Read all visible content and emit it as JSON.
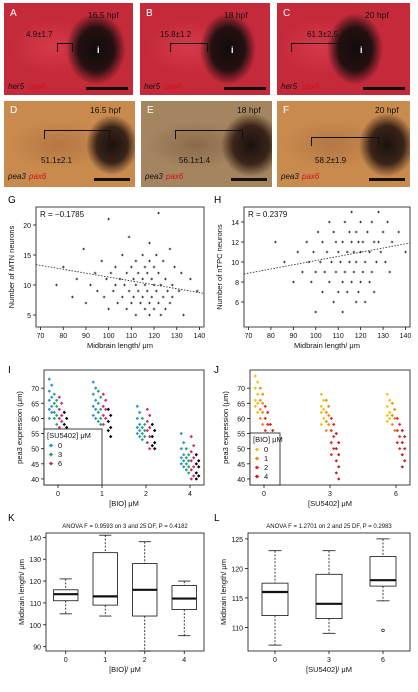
{
  "panels": {
    "A": {
      "label": "A",
      "stage": "16.5 hpf",
      "measure": "4.9±1.7",
      "marker": "i",
      "gene1": "her5",
      "gene2": "pax6"
    },
    "B": {
      "label": "B",
      "stage": "18 hpf",
      "measure": "15.8±1.2",
      "marker": "i",
      "gene1": "her5",
      "gene2": "pax6"
    },
    "C": {
      "label": "C",
      "stage": "20 hpf",
      "measure": "61.3±2.5",
      "marker": "i",
      "gene1": "her5",
      "gene2": "pax6"
    },
    "D": {
      "label": "D",
      "stage": "16.5 hpf",
      "measure": "51.1±2.1",
      "gene1": "pea3",
      "gene2": "pax6"
    },
    "E": {
      "label": "E",
      "stage": "18 hpf",
      "measure": "56.1±1.4",
      "gene1": "pea3",
      "gene2": "pax6"
    },
    "F": {
      "label": "F",
      "stage": "20 hpf",
      "measure": "58.2±1.9",
      "gene1": "pea3",
      "gene2": "pax6"
    }
  },
  "colors": {
    "her5_bg": "#c52a3a",
    "pea3_bg": "#c98a4e",
    "stain_dark": "#1a1210",
    "gene_red": "#d2111a",
    "bio_0": "#2f8fd8",
    "bio_1": "#23a86b",
    "bio_2": "#cf6b7e",
    "bio_3": "#d3277a",
    "su_0": "#f2c312",
    "su_1": "#ef8a21",
    "su_2": "#d9302a",
    "su_3": "#b4262a"
  },
  "chart_data": [
    {
      "panel": "G",
      "type": "scatter",
      "annotation": "R = −0.1785",
      "xlabel": "Midbrain length/ μm",
      "ylabel": "Number of MTN neurons",
      "xlim": [
        68,
        142
      ],
      "ylim": [
        3,
        23
      ],
      "xticks": [
        70,
        80,
        90,
        100,
        110,
        120,
        130,
        140
      ],
      "yticks": [
        5,
        10,
        15,
        20
      ],
      "trend": {
        "x": [
          68,
          142
        ],
        "y": [
          13.4,
          8.6
        ]
      },
      "points": [
        [
          100,
          21
        ],
        [
          122,
          22
        ],
        [
          109,
          18
        ],
        [
          118,
          17
        ],
        [
          89,
          16
        ],
        [
          127,
          16
        ],
        [
          106,
          15
        ],
        [
          115,
          15
        ],
        [
          121,
          15
        ],
        [
          97,
          14
        ],
        [
          112,
          14
        ],
        [
          118,
          14
        ],
        [
          124,
          14
        ],
        [
          80,
          13
        ],
        [
          103,
          13
        ],
        [
          110,
          13
        ],
        [
          116,
          13
        ],
        [
          120,
          13
        ],
        [
          129,
          13
        ],
        [
          94,
          12
        ],
        [
          101,
          12
        ],
        [
          108,
          12
        ],
        [
          113,
          12
        ],
        [
          117,
          12
        ],
        [
          122,
          12
        ],
        [
          132,
          12
        ],
        [
          86,
          11
        ],
        [
          99,
          11
        ],
        [
          105,
          11
        ],
        [
          111,
          11
        ],
        [
          115,
          11
        ],
        [
          119,
          11
        ],
        [
          125,
          11
        ],
        [
          136,
          11
        ],
        [
          77,
          10
        ],
        [
          92,
          10
        ],
        [
          103,
          10
        ],
        [
          107,
          10
        ],
        [
          112,
          10
        ],
        [
          116,
          10
        ],
        [
          120,
          10
        ],
        [
          123,
          10
        ],
        [
          128,
          10
        ],
        [
          95,
          9
        ],
        [
          102,
          9
        ],
        [
          109,
          9
        ],
        [
          113,
          9
        ],
        [
          117,
          9
        ],
        [
          121,
          9
        ],
        [
          126,
          9
        ],
        [
          131,
          9
        ],
        [
          139,
          9
        ],
        [
          84,
          8
        ],
        [
          98,
          8
        ],
        [
          106,
          8
        ],
        [
          111,
          8
        ],
        [
          115,
          8
        ],
        [
          119,
          8
        ],
        [
          124,
          8
        ],
        [
          104,
          7
        ],
        [
          110,
          7
        ],
        [
          114,
          7
        ],
        [
          118,
          7
        ],
        [
          122,
          7
        ],
        [
          127,
          7
        ],
        [
          100,
          6
        ],
        [
          108,
          6
        ],
        [
          116,
          6
        ],
        [
          120,
          6
        ],
        [
          125,
          6
        ],
        [
          112,
          5
        ],
        [
          118,
          5
        ],
        [
          123,
          5
        ],
        [
          133,
          5
        ],
        [
          90,
          7
        ],
        [
          128,
          8
        ]
      ]
    },
    {
      "panel": "H",
      "type": "scatter",
      "annotation": "R = 0.2379",
      "xlabel": "Midbrain length/ μm",
      "ylabel": "Number of nTPC neurons",
      "xlim": [
        68,
        142
      ],
      "ylim": [
        3.5,
        15.5
      ],
      "xticks": [
        70,
        80,
        90,
        100,
        110,
        120,
        130,
        140
      ],
      "yticks": [
        6,
        8,
        10,
        12,
        14
      ],
      "trend": {
        "x": [
          68,
          142
        ],
        "y": [
          8.8,
          11.9
        ]
      },
      "points": [
        [
          116,
          15
        ],
        [
          128,
          15
        ],
        [
          106,
          14
        ],
        [
          113,
          14
        ],
        [
          120,
          14
        ],
        [
          125,
          14
        ],
        [
          132,
          14
        ],
        [
          101,
          13
        ],
        [
          108,
          13
        ],
        [
          115,
          13
        ],
        [
          118,
          13
        ],
        [
          123,
          13
        ],
        [
          130,
          13
        ],
        [
          137,
          13
        ],
        [
          82,
          12
        ],
        [
          96,
          12
        ],
        [
          103,
          12
        ],
        [
          109,
          12
        ],
        [
          112,
          12
        ],
        [
          116,
          12
        ],
        [
          119,
          12
        ],
        [
          121,
          12
        ],
        [
          126,
          12
        ],
        [
          128,
          12
        ],
        [
          134,
          12
        ],
        [
          92,
          11
        ],
        [
          99,
          11
        ],
        [
          105,
          11
        ],
        [
          110,
          11
        ],
        [
          114,
          11
        ],
        [
          117,
          11
        ],
        [
          120,
          11
        ],
        [
          124,
          11
        ],
        [
          129,
          11
        ],
        [
          140,
          11
        ],
        [
          86,
          10
        ],
        [
          97,
          10
        ],
        [
          102,
          10
        ],
        [
          107,
          10
        ],
        [
          111,
          10
        ],
        [
          115,
          10
        ],
        [
          118,
          10
        ],
        [
          122,
          10
        ],
        [
          127,
          10
        ],
        [
          131,
          10
        ],
        [
          94,
          9
        ],
        [
          100,
          9
        ],
        [
          104,
          9
        ],
        [
          109,
          9
        ],
        [
          113,
          9
        ],
        [
          117,
          9
        ],
        [
          121,
          9
        ],
        [
          125,
          9
        ],
        [
          133,
          9
        ],
        [
          90,
          8
        ],
        [
          98,
          8
        ],
        [
          106,
          8
        ],
        [
          112,
          8
        ],
        [
          116,
          8
        ],
        [
          120,
          8
        ],
        [
          124,
          8
        ],
        [
          103,
          7
        ],
        [
          110,
          7
        ],
        [
          114,
          7
        ],
        [
          119,
          7
        ],
        [
          126,
          7
        ],
        [
          108,
          6
        ],
        [
          118,
          6
        ],
        [
          122,
          6
        ],
        [
          112,
          5
        ],
        [
          100,
          5
        ]
      ]
    },
    {
      "panel": "I",
      "type": "scatter",
      "ylabel": "pea3 expression (μm)",
      "xlabel": "[BIO] μM",
      "categories": [
        "0",
        "1",
        "2",
        "4"
      ],
      "ylim": [
        38,
        76
      ],
      "yticks": [
        40,
        45,
        50,
        55,
        60,
        65,
        70
      ],
      "legend": {
        "title": "[SU5402] μM",
        "labels": [
          "0",
          "3",
          "6"
        ]
      },
      "series": [
        {
          "values": [
            [
              73,
              71,
              69,
              67,
              66,
              64,
              63,
              62,
              60
            ],
            [
              72,
              70,
              68,
              66,
              64,
              63,
              61,
              60
            ],
            [
              64,
              62,
              60,
              58,
              57,
              56,
              55,
              54
            ],
            [
              55,
              52,
              50,
              48,
              47,
              46,
              45,
              44
            ]
          ]
        },
        {
          "values": [
            [
              68,
              66,
              65,
              64,
              62,
              61,
              60,
              58
            ],
            [
              69,
              67,
              65,
              63,
              62,
              60,
              59,
              58
            ],
            [
              60,
              58,
              57,
              56,
              55,
              54,
              53
            ],
            [
              50,
              48,
              47,
              46,
              45,
              44,
              43,
              42
            ]
          ]
        },
        {
          "values": [
            [
              67,
              65,
              63,
              61,
              60,
              59,
              57
            ],
            [
              68,
              66,
              64,
              63,
              61,
              60,
              58
            ],
            [
              63,
              61,
              59,
              57,
              56,
              54,
              52,
              50
            ],
            [
              54,
              51,
              49,
              47,
              46,
              44,
              43,
              41,
              40
            ]
          ]
        },
        {
          "values": [
            [
              62,
              60,
              58,
              57,
              55,
              54
            ],
            [
              63,
              61,
              59,
              57,
              56,
              54
            ],
            [
              58,
              56,
              54,
              52,
              51,
              50
            ],
            [
              48,
              46,
              45,
              44,
              42,
              41,
              40
            ]
          ]
        }
      ]
    },
    {
      "panel": "J",
      "type": "scatter",
      "ylabel": "pea3 expression (μm)",
      "xlabel": "[SU5402] μM",
      "categories": [
        "0",
        "3",
        "6"
      ],
      "ylim": [
        38,
        76
      ],
      "yticks": [
        40,
        45,
        50,
        55,
        60,
        65,
        70
      ],
      "legend": {
        "title": "[BIO] μM",
        "labels": [
          "0",
          "1",
          "2",
          "4"
        ]
      },
      "series": [
        {
          "values": [
            [
              74,
              72,
              70,
              68,
              66,
              65,
              64,
              62
            ],
            [
              68,
              66,
              64,
              63,
              62,
              60,
              58
            ],
            [
              68,
              66,
              64,
              62,
              61,
              60,
              59
            ]
          ]
        },
        {
          "values": [
            [
              70,
              68,
              66,
              65,
              63,
              62,
              60,
              58
            ],
            [
              66,
              64,
              62,
              61,
              59,
              58,
              56
            ],
            [
              65,
              63,
              61,
              60,
              58,
              56
            ]
          ]
        },
        {
          "values": [
            [
              64,
              62,
              60,
              58,
              56,
              55,
              53,
              51
            ],
            [
              60,
              58,
              56,
              54,
              52,
              50,
              48
            ],
            [
              60,
              58,
              56,
              54,
              52,
              50
            ]
          ]
        },
        {
          "values": [
            [
              58,
              56,
              54,
              52,
              50,
              48,
              46,
              44
            ],
            [
              55,
              52,
              50,
              48,
              46,
              44,
              42,
              40
            ],
            [
              56,
              54,
              52,
              50,
              48,
              46,
              44
            ]
          ]
        }
      ]
    },
    {
      "panel": "K",
      "type": "box",
      "annotation": "ANOVA F = 0.9593 on 3 and 25 DF, P = 0.4182",
      "ylabel": "Midbrain length/ μm",
      "xlabel": "[BIO]/ μM",
      "categories": [
        "0",
        "1",
        "2",
        "4"
      ],
      "ylim": [
        88,
        142
      ],
      "yticks": [
        90,
        100,
        110,
        120,
        130,
        140
      ],
      "boxes": [
        {
          "min": 105,
          "q1": 111,
          "median": 114,
          "q3": 116,
          "max": 121
        },
        {
          "min": 104,
          "q1": 109,
          "median": 113,
          "q3": 133,
          "max": 141
        },
        {
          "min": 88,
          "q1": 104,
          "median": 116,
          "q3": 128,
          "max": 138
        },
        {
          "min": 95,
          "q1": 107,
          "median": 112,
          "q3": 118,
          "max": 120
        }
      ]
    },
    {
      "panel": "L",
      "type": "box",
      "annotation": "ANOVA F = 1.2701 on 2 and 25 DF, P = 0.2983",
      "ylabel": "Midbrain length/ μm",
      "xlabel": "[SU5402]/ μM",
      "categories": [
        "0",
        "3",
        "6"
      ],
      "ylim": [
        106,
        126
      ],
      "yticks": [
        110,
        115,
        120,
        125
      ],
      "outliers": [
        {
          "category": 2,
          "value": 109.5
        }
      ],
      "boxes": [
        {
          "min": 107,
          "q1": 112,
          "median": 116,
          "q3": 117.5,
          "max": 123
        },
        {
          "min": 109,
          "q1": 111.5,
          "median": 114,
          "q3": 119,
          "max": 123
        },
        {
          "min": 114.5,
          "q1": 117,
          "median": 118,
          "q3": 122,
          "max": 125
        }
      ]
    }
  ],
  "panel_labels": {
    "G": "G",
    "H": "H",
    "I": "I",
    "J": "J",
    "K": "K",
    "L": "L"
  }
}
